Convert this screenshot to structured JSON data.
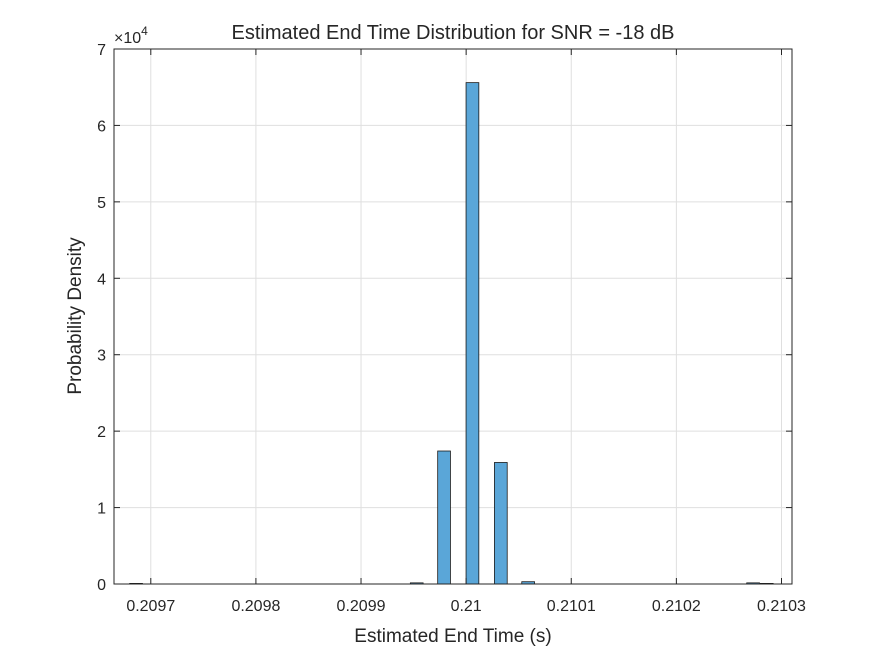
{
  "chart_data": {
    "type": "bar",
    "title": "Estimated End Time Distribution for SNR = -18 dB",
    "xlabel": "Estimated End Time (s)",
    "ylabel": "Probability Density",
    "y_exponent_base": "×10",
    "y_exponent_power": "4",
    "xlim": [
      0.209665,
      0.21031
    ],
    "ylim": [
      0,
      70000
    ],
    "grid": true,
    "bar_color": "#5aa6d8",
    "bar_edge_color": "#1a1a1a",
    "bin_width": 1.35e-05,
    "x_ticks": [
      {
        "value": 0.2097,
        "label": "0.2097"
      },
      {
        "value": 0.2098,
        "label": "0.2098"
      },
      {
        "value": 0.2099,
        "label": "0.2099"
      },
      {
        "value": 0.21,
        "label": "0.21"
      },
      {
        "value": 0.2101,
        "label": "0.2101"
      },
      {
        "value": 0.2102,
        "label": "0.2102"
      },
      {
        "value": 0.2103,
        "label": "0.2103"
      }
    ],
    "y_ticks": [
      {
        "value": 0,
        "label": "0"
      },
      {
        "value": 10000,
        "label": "1"
      },
      {
        "value": 20000,
        "label": "2"
      },
      {
        "value": 30000,
        "label": "3"
      },
      {
        "value": 40000,
        "label": "4"
      },
      {
        "value": 50000,
        "label": "5"
      },
      {
        "value": 60000,
        "label": "6"
      },
      {
        "value": 70000,
        "label": "7"
      }
    ],
    "x": [
      0.209686,
      0.209699,
      0.209713,
      0.209726,
      0.209739,
      0.209753,
      0.209766,
      0.209779,
      0.209793,
      0.209806,
      0.209819,
      0.209833,
      0.209846,
      0.209859,
      0.209873,
      0.209886,
      0.209899,
      0.209913,
      0.209926,
      0.209939,
      0.209953,
      0.209966,
      0.209979,
      0.209993,
      0.210006,
      0.210019,
      0.210033,
      0.210046,
      0.210059,
      0.210073,
      0.210086,
      0.210099,
      0.210113,
      0.210126,
      0.210139,
      0.210153,
      0.210166,
      0.210179,
      0.210193,
      0.210206,
      0.210219,
      0.210233,
      0.210246,
      0.210259,
      0.210273,
      0.210286
    ],
    "values": [
      20,
      0,
      0,
      0,
      0,
      0,
      0,
      0,
      0,
      0,
      0,
      0,
      0,
      0,
      0,
      0,
      0,
      0,
      0,
      0,
      150,
      0,
      17400,
      0,
      65600,
      0,
      15900,
      0,
      300,
      0,
      0,
      0,
      0,
      0,
      0,
      0,
      0,
      0,
      0,
      0,
      0,
      0,
      0,
      0,
      150,
      20
    ]
  }
}
